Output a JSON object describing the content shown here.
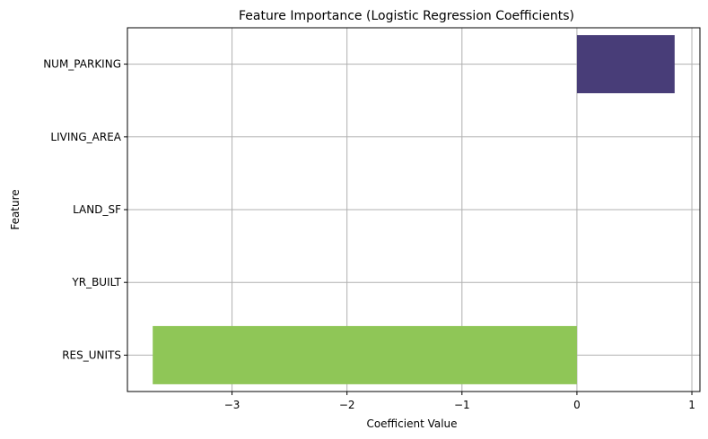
{
  "chart_data": {
    "type": "bar",
    "orientation": "horizontal",
    "title": "Feature Importance (Logistic Regression Coefficients)",
    "xlabel": "Coefficient Value",
    "ylabel": "Feature",
    "categories": [
      "NUM_PARKING",
      "LIVING_AREA",
      "LAND_SF",
      "YR_BUILT",
      "RES_UNITS"
    ],
    "values": [
      0.85,
      0.0,
      0.0,
      0.0,
      -3.69
    ],
    "colors": [
      "#483d78",
      "#3b528b",
      "#21908d",
      "#5ec962",
      "#8fc657"
    ],
    "xlim": [
      -3.91,
      1.07
    ],
    "xticks": [
      -3,
      -2,
      -1,
      0,
      1
    ],
    "xtick_labels": [
      "−3",
      "−2",
      "−1",
      "0",
      "1"
    ],
    "grid": true
  }
}
